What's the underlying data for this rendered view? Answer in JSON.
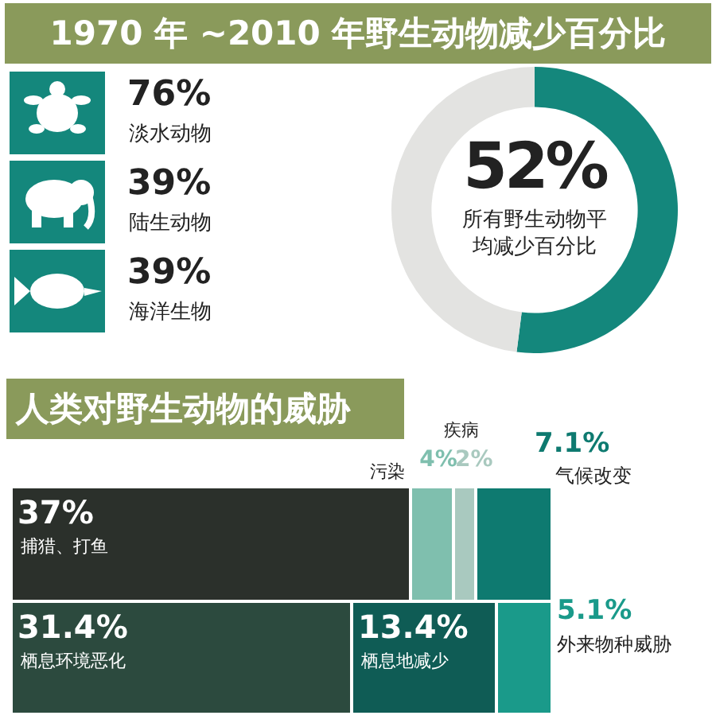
{
  "chart_data": [
    {
      "type": "other",
      "title": "1970 年 ~2010 年野生动物减少百分比",
      "categories": [
        "淡水动物",
        "陆生动物",
        "海洋生物"
      ],
      "value_labels": [
        "76%",
        "39%",
        "39%"
      ],
      "color": "#14877c"
    },
    {
      "type": "donut",
      "categories": [
        null,
        null
      ],
      "values": [
        52,
        48
      ],
      "colors": [
        "#14877c",
        "#e3e3e1"
      ],
      "value_labels": [
        "52%",
        null
      ],
      "annotations": [
        "所有野生动物平均减少百分比"
      ],
      "legend": false
    },
    {
      "type": "other",
      "title": "人类对野生动物的威胁",
      "categories": [
        "捕猎、打鱼",
        "污染",
        "疾病",
        "气候改变",
        "栖息环境恶化",
        "栖息地减少",
        "外来物种威胁"
      ],
      "values": [
        37,
        4,
        2,
        7.1,
        31.4,
        13.4,
        5.1
      ],
      "value_labels": [
        "37%",
        "4%",
        "2%",
        "7.1%",
        "31.4%",
        "13.4%",
        "5.1%"
      ],
      "colors": [
        "#2b302b",
        "#7fbfae",
        "#a9c9bf",
        "#0e7a70",
        "#2c4a3e",
        "#0f5c55",
        "#1a9a8a"
      ]
    }
  ]
}
